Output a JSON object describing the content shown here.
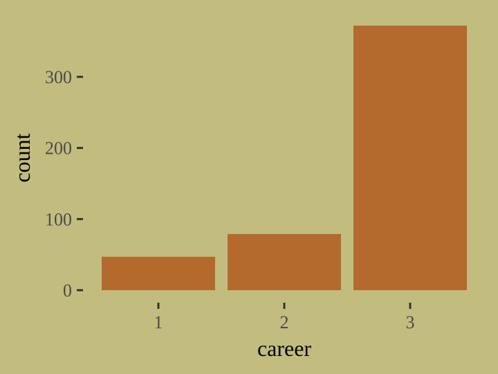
{
  "chart_data": {
    "type": "bar",
    "categories": [
      "1",
      "2",
      "3"
    ],
    "values": [
      47,
      79,
      372
    ],
    "title": "",
    "xlabel": "career",
    "ylabel": "count",
    "ylim": [
      0,
      372
    ],
    "yticks": [
      0,
      100,
      200,
      300
    ],
    "ytick_labels": [
      "0",
      "100",
      "200",
      "300"
    ],
    "grid": false,
    "legend": "none"
  },
  "colors": {
    "background": "#c2bc7f",
    "bar_fill": "#b36a2c",
    "tick_text": "#4a4a4a",
    "axis_title_text": "#000000"
  }
}
